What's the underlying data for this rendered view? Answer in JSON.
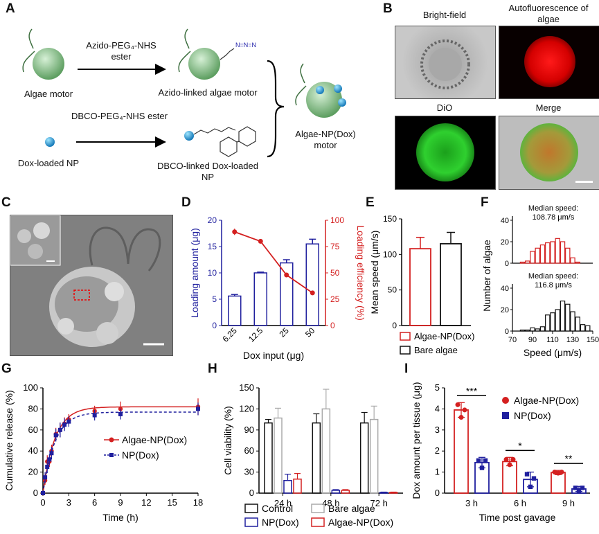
{
  "panels": {
    "A": "A",
    "B": "B",
    "C": "C",
    "D": "D",
    "E": "E",
    "F": "F",
    "G": "G",
    "H": "H",
    "I": "I"
  },
  "A": {
    "algae_motor": "Algae motor",
    "step1": "Azido-PEG₄-NHS ester",
    "azido_algae": "Azido-linked algae motor",
    "step2": "DBCO-PEG₄-NHS ester",
    "dox_np": "Dox-loaded NP",
    "dbco_np": "DBCO-linked Dox-loaded NP",
    "product": "Algae-NP(Dox) motor"
  },
  "B": {
    "bright": "Bright-field",
    "auto": "Autofluorescence of algae",
    "dio": "DiO",
    "merge": "Merge"
  },
  "chart_data": [
    {
      "panel": "D",
      "type": "bar",
      "categories": [
        "6.25",
        "12.5",
        "25",
        "50"
      ],
      "xlabel": "Dox input (μg)",
      "series": [
        {
          "name": "Loading amount (μg)",
          "type": "bar",
          "values": [
            5.6,
            10.0,
            11.9,
            15.5
          ],
          "errors": [
            0.3,
            0.15,
            0.6,
            0.9
          ]
        },
        {
          "name": "Loading efficiency (%)",
          "type": "line",
          "values": [
            89,
            80,
            48,
            31
          ],
          "errors": [
            3,
            1,
            2,
            1.5
          ]
        }
      ],
      "ylabel": "Loading amount (μg)",
      "ylim": [
        0,
        20
      ],
      "yticks": [
        0,
        5,
        10,
        15,
        20
      ],
      "y2label": "Loading efficiency (%)",
      "y2lim": [
        0,
        100
      ],
      "y2ticks": [
        0,
        25,
        50,
        75,
        100
      ],
      "colors": {
        "bar": "#1f1f9e",
        "line": "#d42020"
      }
    },
    {
      "panel": "E",
      "type": "bar",
      "categories": [
        "Algae-NP(Dox)",
        "Bare algae"
      ],
      "values": [
        108,
        115
      ],
      "errors": [
        16,
        16
      ],
      "ylabel": "Mean speed (μm/s)",
      "ylim": [
        0,
        150
      ],
      "yticks": [
        0,
        50,
        100,
        150
      ],
      "colors": [
        "#d42020",
        "#111111"
      ]
    },
    {
      "panel": "F",
      "type": "bar",
      "xlabel": "Speed (μm/s)",
      "ylabel": "Number of algae",
      "xticks": [
        70,
        90,
        110,
        130,
        150
      ],
      "xlim": [
        70,
        150
      ],
      "series": [
        {
          "name": "Algae-NP(Dox)",
          "annotation": "Median speed: 108.78 μm/s",
          "bins": [
            80,
            85,
            90,
            95,
            100,
            105,
            110,
            115,
            120,
            125,
            130,
            135,
            140,
            145
          ],
          "values": [
            1,
            2,
            11,
            14,
            17,
            19,
            20,
            23,
            20,
            14,
            5,
            1,
            0,
            0
          ],
          "ylim": [
            0,
            40
          ],
          "yticks": [
            0,
            20,
            40
          ],
          "color": "#d42020"
        },
        {
          "name": "Bare algae",
          "annotation": "Median speed: 116.8 μm/s",
          "bins": [
            80,
            85,
            90,
            95,
            100,
            105,
            110,
            115,
            120,
            125,
            130,
            135,
            140,
            145
          ],
          "values": [
            1,
            1,
            3,
            2,
            4,
            15,
            17,
            20,
            28,
            25,
            18,
            13,
            6,
            5
          ],
          "ylim": [
            0,
            40
          ],
          "yticks": [
            0,
            20,
            40
          ],
          "color": "#111111"
        }
      ]
    },
    {
      "panel": "G",
      "type": "line",
      "xlabel": "Time (h)",
      "ylabel": "Cumulative release (%)",
      "xlim": [
        0,
        18
      ],
      "xticks": [
        0,
        3,
        6,
        9,
        12,
        15,
        18
      ],
      "ylim": [
        0,
        100
      ],
      "yticks": [
        0,
        20,
        40,
        60,
        80,
        100
      ],
      "series": [
        {
          "name": "Algae-NP(Dox)",
          "x": [
            0,
            0.25,
            0.5,
            0.75,
            1,
            1.5,
            2,
            2.5,
            3,
            6,
            9,
            18
          ],
          "y": [
            0,
            12,
            30,
            30,
            40,
            56,
            60,
            66,
            70,
            78,
            80,
            82
          ],
          "errors": [
            1,
            4,
            6,
            5,
            6,
            6,
            7,
            6,
            5,
            5,
            7,
            8
          ],
          "color": "#d42020"
        },
        {
          "name": "NP(Dox)",
          "x": [
            0,
            0.25,
            0.5,
            0.75,
            1,
            1.5,
            2,
            2.5,
            3,
            6,
            9,
            18
          ],
          "y": [
            0,
            15,
            25,
            32,
            38,
            55,
            60,
            65,
            68,
            74,
            75,
            80
          ],
          "errors": [
            1,
            5,
            6,
            5,
            6,
            6,
            7,
            6,
            5,
            5,
            5,
            6
          ],
          "color": "#1f1f9e"
        }
      ],
      "fit": {
        "Algae-NP(Dox)": 82,
        "NP(Dox)": 77
      }
    },
    {
      "panel": "H",
      "type": "bar",
      "categories": [
        "24 h",
        "48 h",
        "72 h"
      ],
      "ylabel": "Cell viability (%)",
      "ylim": [
        0,
        150
      ],
      "yticks": [
        0,
        30,
        60,
        90,
        120,
        150
      ],
      "series": [
        {
          "name": "Control",
          "values": [
            100,
            100,
            100
          ],
          "errors": [
            5,
            13,
            15
          ],
          "color": "#111111"
        },
        {
          "name": "Bare algae",
          "values": [
            107,
            120,
            105
          ],
          "errors": [
            14,
            28,
            19
          ],
          "color": "#aaaaaa"
        },
        {
          "name": "NP(Dox)",
          "values": [
            18,
            4,
            1
          ],
          "errors": [
            9,
            1,
            0.5
          ],
          "color": "#1f1f9e"
        },
        {
          "name": "Algae-NP(Dox)",
          "values": [
            20,
            4,
            1
          ],
          "errors": [
            8,
            1,
            0.5
          ],
          "color": "#d42020"
        }
      ]
    },
    {
      "panel": "I",
      "type": "bar",
      "categories": [
        "3 h",
        "6 h",
        "9 h"
      ],
      "xlabel": "Time post gavage",
      "ylabel": "Dox amount per tissue (μg)",
      "ylim": [
        0,
        5
      ],
      "yticks": [
        0,
        1,
        2,
        3,
        4,
        5
      ],
      "series": [
        {
          "name": "Algae-NP(Dox)",
          "values": [
            3.95,
            1.5,
            0.98
          ],
          "errors": [
            0.35,
            0.2,
            0.1
          ],
          "points": [
            [
              4.2,
              3.6,
              3.95
            ],
            [
              1.6,
              1.35,
              1.6
            ],
            [
              1.0,
              0.95,
              1.0
            ]
          ],
          "color": "#d42020"
        },
        {
          "name": "NP(Dox)",
          "values": [
            1.45,
            0.65,
            0.2
          ],
          "errors": [
            0.25,
            0.35,
            0.12
          ],
          "points": [
            [
              1.55,
              1.2,
              1.55
            ],
            [
              0.9,
              0.3,
              0.7
            ],
            [
              0.25,
              0.12,
              0.25
            ]
          ],
          "color": "#1f1f9e"
        }
      ],
      "significance": [
        "***",
        "*",
        "**"
      ]
    }
  ]
}
